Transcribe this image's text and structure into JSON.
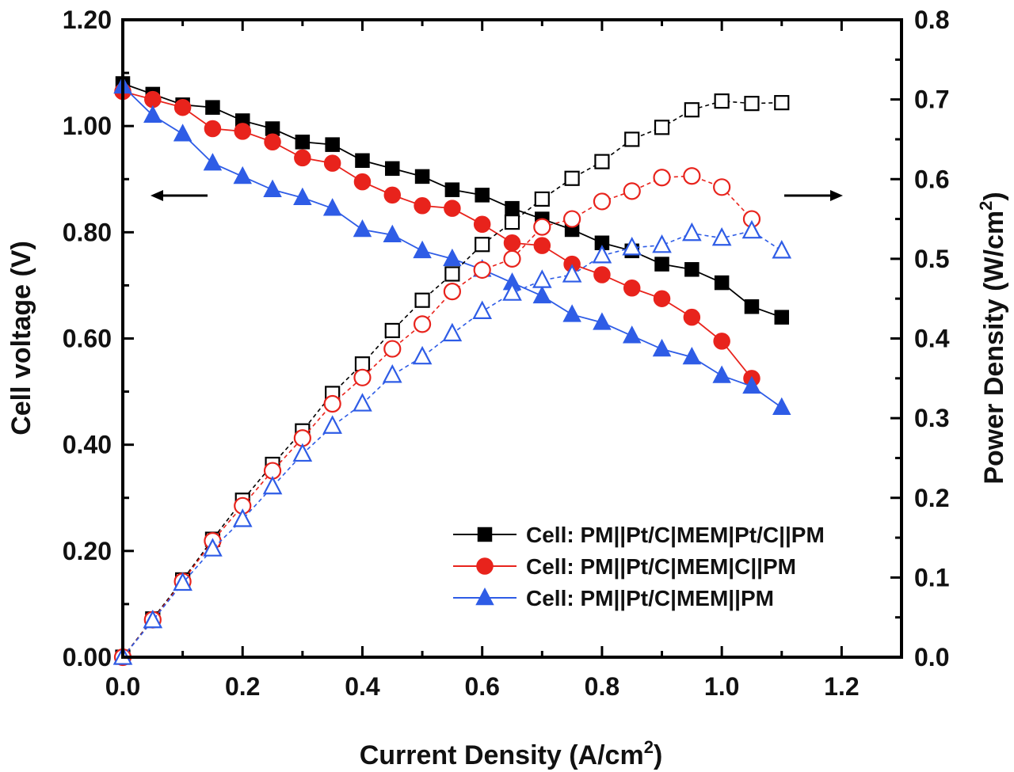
{
  "chart_data": {
    "type": "line",
    "xlabel": "Current Density (A/cm",
    "xlabel_sup": "2",
    "xlabel_close": ")",
    "ylabel_left": "Cell voltage (V)",
    "ylabel_right": "Power Density (W/cm",
    "ylabel_right_sup": "2",
    "ylabel_right_close": ")",
    "xlim": [
      0.0,
      1.3
    ],
    "ylim_left": [
      0.0,
      1.2
    ],
    "ylim_right": [
      0.0,
      0.8
    ],
    "x_ticks": [
      "0.0",
      "0.2",
      "0.4",
      "0.6",
      "0.8",
      "1.0",
      "1.2"
    ],
    "y_left_ticks": [
      "0.00",
      "0.20",
      "0.40",
      "0.60",
      "0.80",
      "1.00",
      "1.20"
    ],
    "y_right_ticks": [
      "0.0",
      "0.1",
      "0.2",
      "0.3",
      "0.4",
      "0.5",
      "0.6",
      "0.7",
      "0.8"
    ],
    "annotations": [
      {
        "type": "arrow",
        "direction": "left",
        "meaning": "voltage curves use left axis"
      },
      {
        "type": "arrow",
        "direction": "right",
        "meaning": "power curves use right axis"
      }
    ],
    "legend_position": "bottom-right",
    "series": [
      {
        "name": "Cell: PM||Pt/C|MEM|Pt/C||PM",
        "color": "#000000",
        "marker": "square",
        "x": [
          0.0,
          0.05,
          0.1,
          0.15,
          0.2,
          0.25,
          0.3,
          0.35,
          0.4,
          0.45,
          0.5,
          0.55,
          0.6,
          0.65,
          0.7,
          0.75,
          0.8,
          0.85,
          0.9,
          0.95,
          1.0,
          1.05,
          1.1
        ],
        "voltage": [
          1.08,
          1.06,
          1.04,
          1.035,
          1.01,
          0.995,
          0.97,
          0.965,
          0.935,
          0.92,
          0.905,
          0.88,
          0.87,
          0.845,
          0.825,
          0.805,
          0.78,
          0.765,
          0.74,
          0.73,
          0.705,
          0.66,
          0.64
        ],
        "power": [
          0.0,
          0.048,
          0.097,
          0.148,
          0.197,
          0.242,
          0.284,
          0.331,
          0.368,
          0.41,
          0.448,
          0.481,
          0.518,
          0.546,
          0.575,
          0.601,
          0.622,
          0.65,
          0.665,
          0.687,
          0.698,
          0.695,
          0.696
        ]
      },
      {
        "name": "Cell: PM||Pt/C|MEM|C||PM",
        "color": "#e8231c",
        "marker": "circle",
        "x": [
          0.0,
          0.05,
          0.1,
          0.15,
          0.2,
          0.25,
          0.3,
          0.35,
          0.4,
          0.45,
          0.5,
          0.55,
          0.6,
          0.65,
          0.7,
          0.75,
          0.8,
          0.85,
          0.9,
          0.95,
          1.0,
          1.05
        ],
        "voltage": [
          1.065,
          1.05,
          1.035,
          0.995,
          0.99,
          0.97,
          0.94,
          0.93,
          0.895,
          0.87,
          0.85,
          0.845,
          0.815,
          0.78,
          0.775,
          0.74,
          0.72,
          0.695,
          0.675,
          0.64,
          0.595,
          0.525
        ],
        "power": [
          0.0,
          0.047,
          0.095,
          0.146,
          0.19,
          0.234,
          0.275,
          0.318,
          0.351,
          0.387,
          0.418,
          0.459,
          0.486,
          0.5,
          0.54,
          0.55,
          0.572,
          0.585,
          0.602,
          0.604,
          0.59,
          0.55
        ]
      },
      {
        "name": "Cell: PM||Pt/C|MEM||PM",
        "color": "#2e5ce6",
        "marker": "triangle",
        "x": [
          0.0,
          0.05,
          0.1,
          0.15,
          0.2,
          0.25,
          0.3,
          0.35,
          0.4,
          0.45,
          0.5,
          0.55,
          0.6,
          0.65,
          0.7,
          0.75,
          0.8,
          0.85,
          0.9,
          0.95,
          1.0,
          1.05,
          1.1
        ],
        "voltage": [
          1.075,
          1.02,
          0.985,
          0.93,
          0.905,
          0.88,
          0.865,
          0.845,
          0.805,
          0.795,
          0.765,
          0.75,
          0.73,
          0.705,
          0.68,
          0.645,
          0.63,
          0.605,
          0.58,
          0.565,
          0.53,
          0.51,
          0.47
        ],
        "power": [
          0.0,
          0.046,
          0.093,
          0.136,
          0.173,
          0.214,
          0.255,
          0.29,
          0.318,
          0.354,
          0.377,
          0.406,
          0.434,
          0.457,
          0.473,
          0.48,
          0.504,
          0.514,
          0.517,
          0.532,
          0.526,
          0.535,
          0.51
        ]
      }
    ]
  }
}
